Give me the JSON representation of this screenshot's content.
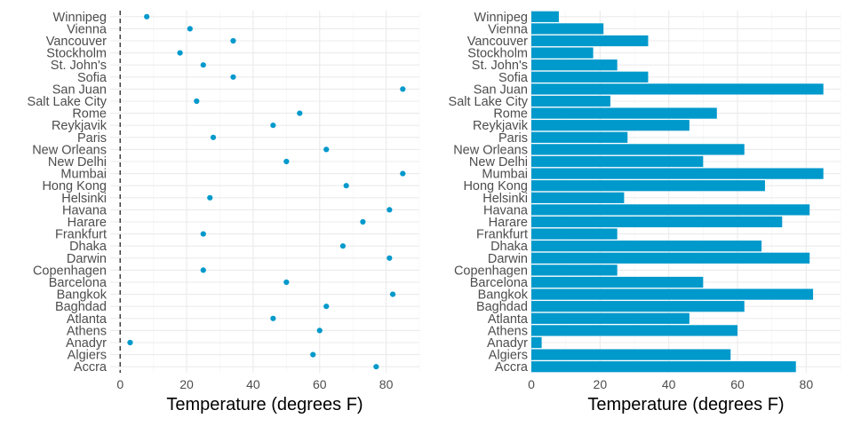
{
  "chart_data": [
    {
      "type": "scatter",
      "categories": [
        "Accra",
        "Algiers",
        "Anadyr",
        "Athens",
        "Atlanta",
        "Baghdad",
        "Bangkok",
        "Barcelona",
        "Copenhagen",
        "Darwin",
        "Dhaka",
        "Frankfurt",
        "Harare",
        "Havana",
        "Helsinki",
        "Hong Kong",
        "Mumbai",
        "New Delhi",
        "New Orleans",
        "Paris",
        "Reykjavik",
        "Rome",
        "Salt Lake City",
        "San Juan",
        "Sofia",
        "St. John's",
        "Stockholm",
        "Vancouver",
        "Vienna",
        "Winnipeg"
      ],
      "values": [
        77,
        58,
        3,
        60,
        46,
        62,
        82,
        50,
        25,
        81,
        67,
        25,
        73,
        81,
        27,
        68,
        85,
        50,
        62,
        28,
        46,
        54,
        23,
        85,
        34,
        25,
        18,
        34,
        21,
        8
      ],
      "xlabel": "Temperature (degrees F)",
      "ylabel": "",
      "xlim": [
        -3,
        90
      ],
      "xticks": [
        0,
        20,
        40,
        60,
        80
      ],
      "reference_line": 0,
      "grid": true,
      "color": "#0099cc"
    },
    {
      "type": "bar",
      "orientation": "horizontal",
      "categories": [
        "Accra",
        "Algiers",
        "Anadyr",
        "Athens",
        "Atlanta",
        "Baghdad",
        "Bangkok",
        "Barcelona",
        "Copenhagen",
        "Darwin",
        "Dhaka",
        "Frankfurt",
        "Harare",
        "Havana",
        "Helsinki",
        "Hong Kong",
        "Mumbai",
        "New Delhi",
        "New Orleans",
        "Paris",
        "Reykjavik",
        "Rome",
        "Salt Lake City",
        "San Juan",
        "Sofia",
        "St. John's",
        "Stockholm",
        "Vancouver",
        "Vienna",
        "Winnipeg"
      ],
      "values": [
        77,
        58,
        3,
        60,
        46,
        62,
        82,
        50,
        25,
        81,
        67,
        25,
        73,
        81,
        27,
        68,
        85,
        50,
        62,
        28,
        46,
        54,
        23,
        85,
        34,
        25,
        18,
        34,
        21,
        8
      ],
      "xlabel": "Temperature (degrees F)",
      "ylabel": "",
      "xlim": [
        0,
        90
      ],
      "xticks": [
        0,
        20,
        40,
        60,
        80
      ],
      "grid": true,
      "color": "#0099cc"
    }
  ]
}
